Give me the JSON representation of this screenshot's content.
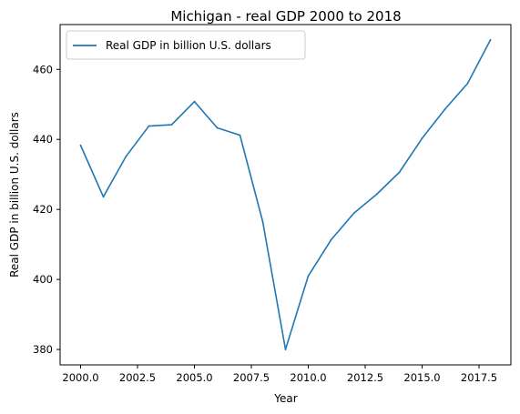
{
  "chart_data": {
    "type": "line",
    "title": "Michigan - real GDP 2000 to 2018",
    "xlabel": "Year",
    "ylabel": "Real GDP in billion U.S. dollars",
    "x": [
      2000,
      2001,
      2002,
      2003,
      2004,
      2005,
      2006,
      2007,
      2008,
      2009,
      2010,
      2011,
      2012,
      2013,
      2014,
      2015,
      2016,
      2017,
      2018
    ],
    "series": [
      {
        "name": "Real GDP in billion U.S. dollars",
        "color": "#1f77b4",
        "values": [
          438.3,
          423.6,
          435.2,
          443.8,
          444.2,
          450.8,
          443.3,
          441.2,
          416.5,
          380.0,
          401.0,
          411.3,
          418.9,
          424.3,
          430.6,
          440.3,
          448.6,
          456.0,
          468.4
        ]
      }
    ],
    "xlim": [
      1999.1,
      2018.9
    ],
    "ylim": [
      375.6,
      472.8
    ],
    "xticks": [
      "2000.0",
      "2002.5",
      "2005.0",
      "2007.5",
      "2010.0",
      "2012.5",
      "2015.0",
      "2017.5"
    ],
    "xtick_values": [
      2000,
      2002.5,
      2005,
      2007.5,
      2010,
      2012.5,
      2015,
      2017.5
    ],
    "yticks": [
      "380",
      "400",
      "420",
      "440",
      "460"
    ],
    "ytick_values": [
      380,
      400,
      420,
      440,
      460
    ],
    "grid": false,
    "legend_position": "top-left"
  }
}
